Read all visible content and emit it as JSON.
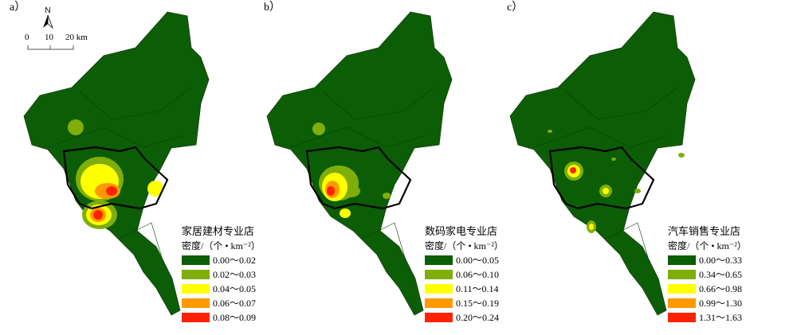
{
  "panels": [
    {
      "label": "a）",
      "legend_title": "家居建材专业店",
      "unit": "密度/（个 • km⁻²）",
      "classes": [
        "0.00～0.02",
        "0.02～0.03",
        "0.04～0.05",
        "0.06～0.07",
        "0.08～0.09"
      ]
    },
    {
      "label": "b）",
      "legend_title": "数码家电专业店",
      "unit": "密度/（个 • km⁻²）",
      "classes": [
        "0.00～0.05",
        "0.06～0.10",
        "0.11～0.14",
        "0.15～0.19",
        "0.20～0.24"
      ]
    },
    {
      "label": "c）",
      "legend_title": "汽车销售专业店",
      "unit": "密度/（个 • km⁻²）",
      "classes": [
        "0.00～0.33",
        "0.34～0.65",
        "0.66～0.98",
        "0.99～1.30",
        "1.31～1.63"
      ]
    }
  ],
  "colors": [
    "#0b5e06",
    "#7fae0b",
    "#ffff00",
    "#ff9900",
    "#ff2200"
  ],
  "north": "N",
  "scalebar": {
    "ticks": [
      "0",
      "10",
      "20 km"
    ]
  }
}
